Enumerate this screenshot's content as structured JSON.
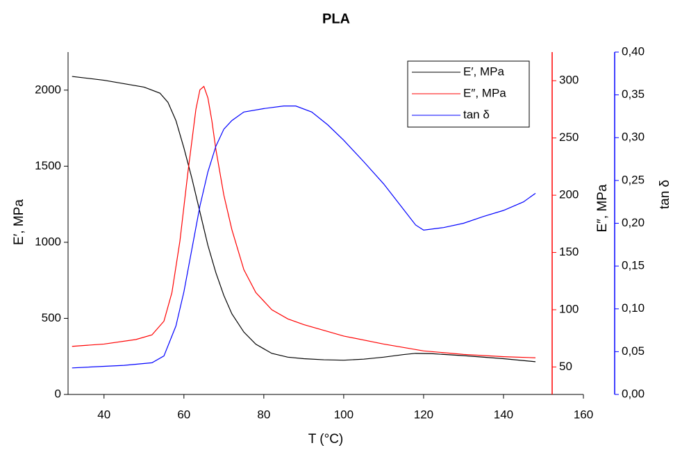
{
  "chart_data": {
    "type": "line",
    "title": "PLA",
    "x_label": "T (°C)",
    "y_label": "E′, MPa",
    "y2_label": "E″, MPa",
    "y3_label": "tan δ",
    "xlim": [
      31,
      160
    ],
    "xticks": [
      40,
      60,
      80,
      100,
      120,
      140,
      160
    ],
    "ylim": [
      0,
      2250
    ],
    "yticks": [
      0,
      500,
      1000,
      1500,
      2000
    ],
    "y2lim": [
      26,
      325
    ],
    "y2ticks": [
      50,
      100,
      150,
      200,
      250,
      300
    ],
    "y2color": "#ff0000",
    "y3lim": [
      0,
      0.4
    ],
    "y3ticks": [
      {
        "value": 0,
        "label": "0,00"
      },
      {
        "value": 0.05,
        "label": "0,05"
      },
      {
        "value": 0.1,
        "label": "0,10"
      },
      {
        "value": 0.15,
        "label": "0,15"
      },
      {
        "value": 0.2,
        "label": "0,20"
      },
      {
        "value": 0.25,
        "label": "0,25"
      },
      {
        "value": 0.3,
        "label": "0,30"
      },
      {
        "value": 0.35,
        "label": "0,35"
      },
      {
        "value": 0.4,
        "label": "0,40"
      }
    ],
    "y3color": "#0000ff",
    "legend": "upper right",
    "series": [
      {
        "name": "E′, MPa",
        "color": "#000000",
        "axis": "y",
        "x": [
          32,
          40,
          50,
          54,
          56,
          58,
          60,
          62,
          64,
          66,
          68,
          70,
          72,
          75,
          78,
          82,
          86,
          90,
          95,
          100,
          105,
          110,
          115,
          118,
          122,
          130,
          140,
          148
        ],
        "values": [
          2090,
          2065,
          2020,
          1980,
          1920,
          1800,
          1620,
          1420,
          1200,
          980,
          800,
          650,
          530,
          410,
          330,
          270,
          245,
          235,
          228,
          225,
          232,
          245,
          262,
          270,
          268,
          255,
          235,
          215
        ]
      },
      {
        "name": "E″, MPa",
        "color": "#ff0000",
        "axis": "y2",
        "x": [
          32,
          40,
          48,
          52,
          55,
          57,
          59,
          61,
          63,
          64,
          65,
          66,
          67,
          68,
          70,
          72,
          75,
          78,
          82,
          86,
          90,
          95,
          100,
          110,
          120,
          130,
          140,
          148
        ],
        "values": [
          68,
          70,
          74,
          78,
          90,
          115,
          160,
          220,
          275,
          292,
          295,
          285,
          265,
          240,
          200,
          170,
          135,
          115,
          100,
          92,
          87,
          82,
          77,
          70,
          64,
          61,
          59,
          58
        ]
      },
      {
        "name": "tan δ",
        "color": "#0000ff",
        "axis": "y3",
        "x": [
          32,
          45,
          52,
          55,
          58,
          60,
          62,
          64,
          66,
          68,
          70,
          72,
          75,
          80,
          85,
          88,
          92,
          96,
          100,
          105,
          110,
          115,
          118,
          120,
          125,
          130,
          135,
          140,
          145,
          148
        ],
        "values": [
          0.031,
          0.034,
          0.037,
          0.045,
          0.08,
          0.12,
          0.17,
          0.22,
          0.26,
          0.29,
          0.31,
          0.32,
          0.33,
          0.334,
          0.337,
          0.337,
          0.33,
          0.315,
          0.297,
          0.272,
          0.246,
          0.216,
          0.198,
          0.192,
          0.195,
          0.2,
          0.208,
          0.215,
          0.225,
          0.235
        ]
      }
    ]
  }
}
